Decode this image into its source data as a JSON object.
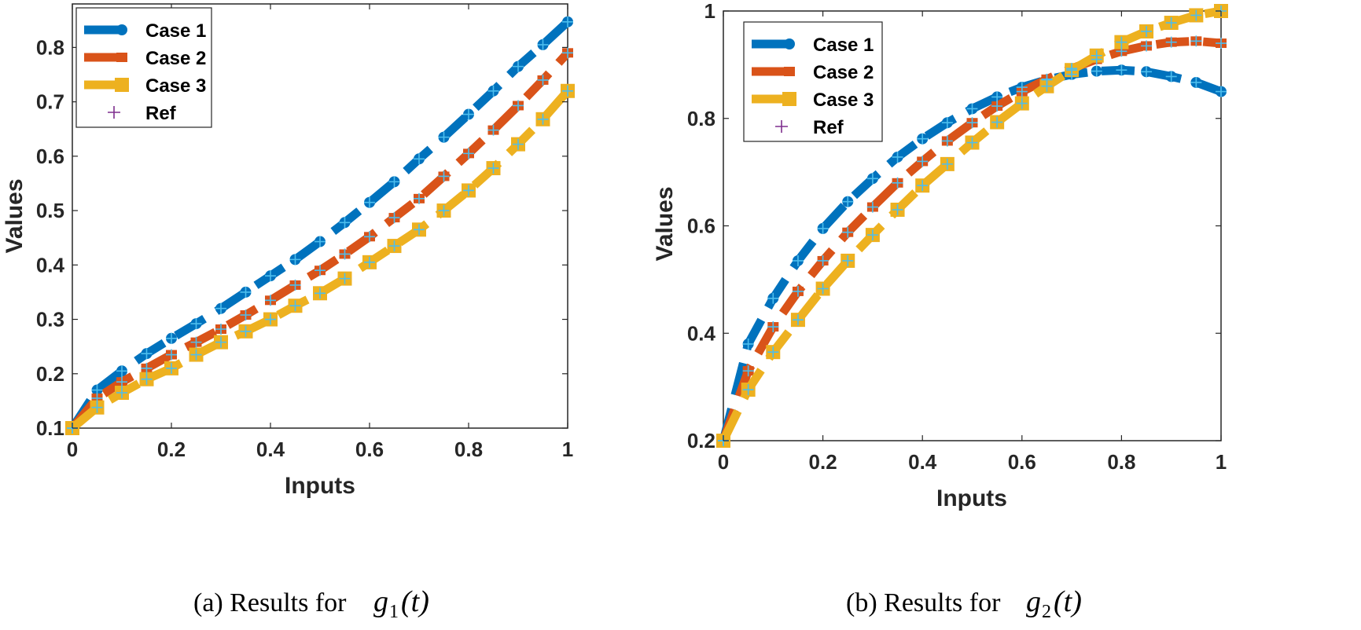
{
  "colors": {
    "case1": "#0072BD",
    "case2": "#D95319",
    "case3": "#EDB120",
    "ref": "#7E2F8E",
    "refOnLine": "#4DBEEE"
  },
  "chart_data": [
    {
      "type": "line",
      "id": "g1",
      "xlabel": "Inputs",
      "ylabel": "Values",
      "xlim": [
        0,
        1
      ],
      "ylim": [
        0.1,
        0.88
      ],
      "xticks": [
        "0",
        "0.2",
        "0.4",
        "0.6",
        "0.8",
        "1"
      ],
      "yticks": [
        "0.1",
        "0.2",
        "0.3",
        "0.4",
        "0.5",
        "0.6",
        "0.7",
        "0.8"
      ],
      "legend": [
        "Case 1",
        "Case 2",
        "Case 3",
        "Ref"
      ],
      "legend_position": "top-left",
      "caption": {
        "prefix": "(a) Results for",
        "func": "g",
        "sub": "1",
        "arg": "(t)"
      },
      "x": [
        0,
        0.05,
        0.1,
        0.15,
        0.2,
        0.25,
        0.3,
        0.35,
        0.4,
        0.45,
        0.5,
        0.55,
        0.6,
        0.65,
        0.7,
        0.75,
        0.8,
        0.85,
        0.9,
        0.95,
        1
      ],
      "series": [
        {
          "name": "Case 1",
          "values": [
            0.1,
            0.17,
            0.205,
            0.237,
            0.265,
            0.292,
            0.32,
            0.35,
            0.38,
            0.41,
            0.443,
            0.478,
            0.515,
            0.553,
            0.595,
            0.635,
            0.677,
            0.72,
            0.765,
            0.805,
            0.847
          ]
        },
        {
          "name": "Case 2",
          "values": [
            0.1,
            0.155,
            0.185,
            0.21,
            0.235,
            0.258,
            0.282,
            0.308,
            0.335,
            0.363,
            0.39,
            0.42,
            0.452,
            0.487,
            0.522,
            0.563,
            0.605,
            0.648,
            0.693,
            0.74,
            0.79
          ]
        },
        {
          "name": "Case 3",
          "values": [
            0.1,
            0.138,
            0.165,
            0.19,
            0.21,
            0.235,
            0.258,
            0.278,
            0.3,
            0.325,
            0.348,
            0.375,
            0.405,
            0.435,
            0.465,
            0.5,
            0.537,
            0.578,
            0.622,
            0.668,
            0.72
          ]
        }
      ]
    },
    {
      "type": "line",
      "id": "g2",
      "xlabel": "Inputs",
      "ylabel": "Values",
      "xlim": [
        0,
        1
      ],
      "ylim": [
        0.2,
        1
      ],
      "xticks": [
        "0",
        "0.2",
        "0.4",
        "0.6",
        "0.8",
        "1"
      ],
      "yticks": [
        "0.2",
        "0.4",
        "0.6",
        "0.8",
        "1"
      ],
      "legend": [
        "Case 1",
        "Case 2",
        "Case 3",
        "Ref"
      ],
      "legend_position": "top-left",
      "caption": {
        "prefix": "(b) Results for",
        "func": "g",
        "sub": "2",
        "arg": "(t)"
      },
      "x": [
        0,
        0.05,
        0.1,
        0.15,
        0.2,
        0.25,
        0.3,
        0.35,
        0.4,
        0.45,
        0.5,
        0.55,
        0.6,
        0.65,
        0.7,
        0.75,
        0.8,
        0.85,
        0.9,
        0.95,
        1
      ],
      "series": [
        {
          "name": "Case 1",
          "values": [
            0.2,
            0.38,
            0.465,
            0.535,
            0.595,
            0.645,
            0.688,
            0.728,
            0.762,
            0.792,
            0.818,
            0.84,
            0.858,
            0.872,
            0.882,
            0.888,
            0.89,
            0.887,
            0.878,
            0.867,
            0.85
          ]
        },
        {
          "name": "Case 2",
          "values": [
            0.2,
            0.33,
            0.412,
            0.478,
            0.535,
            0.588,
            0.635,
            0.68,
            0.72,
            0.758,
            0.792,
            0.823,
            0.85,
            0.873,
            0.893,
            0.91,
            0.925,
            0.935,
            0.942,
            0.944,
            0.94
          ]
        },
        {
          "name": "Case 3",
          "values": [
            0.2,
            0.295,
            0.365,
            0.425,
            0.483,
            0.535,
            0.583,
            0.63,
            0.675,
            0.715,
            0.755,
            0.793,
            0.828,
            0.86,
            0.89,
            0.917,
            0.942,
            0.962,
            0.978,
            0.992,
            1.0
          ]
        }
      ]
    }
  ]
}
